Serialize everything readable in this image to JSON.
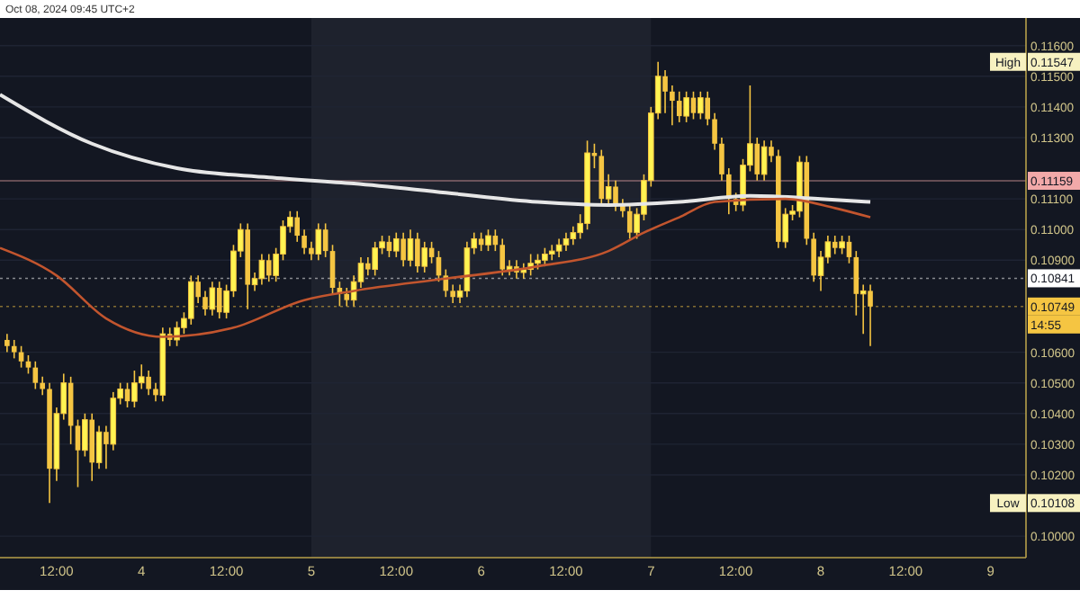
{
  "chart_data": {
    "type": "candlestick",
    "annotations": [
      "Oct 08, 2024 09:45 UTC+2",
      "High",
      "0.11547",
      "Low",
      "0.10108",
      "14:55"
    ],
    "color": "#f5c542",
    "x": [
      "2024-10-03T05:00",
      "2024-10-03T06:00",
      "2024-10-03T07:00",
      "2024-10-03T08:00",
      "2024-10-03T09:00",
      "2024-10-03T10:00",
      "2024-10-03T11:00",
      "2024-10-03T12:00",
      "2024-10-03T13:00",
      "2024-10-03T14:00",
      "2024-10-03T15:00",
      "2024-10-03T16:00",
      "2024-10-03T17:00",
      "2024-10-03T18:00",
      "2024-10-03T19:00",
      "2024-10-03T20:00",
      "2024-10-03T21:00",
      "2024-10-03T22:00",
      "2024-10-03T23:00",
      "2024-10-04T00:00",
      "2024-10-04T01:00",
      "2024-10-04T02:00",
      "2024-10-04T03:00",
      "2024-10-04T04:00",
      "2024-10-04T05:00",
      "2024-10-04T06:00",
      "2024-10-04T07:00",
      "2024-10-04T08:00",
      "2024-10-04T09:00",
      "2024-10-04T10:00",
      "2024-10-04T11:00",
      "2024-10-04T12:00",
      "2024-10-04T13:00",
      "2024-10-04T14:00",
      "2024-10-04T15:00",
      "2024-10-04T16:00",
      "2024-10-04T17:00",
      "2024-10-04T18:00",
      "2024-10-04T19:00",
      "2024-10-04T20:00",
      "2024-10-04T21:00",
      "2024-10-04T22:00",
      "2024-10-04T23:00",
      "2024-10-05T00:00",
      "2024-10-05T01:00",
      "2024-10-05T02:00",
      "2024-10-05T03:00",
      "2024-10-05T04:00",
      "2024-10-05T05:00",
      "2024-10-05T06:00",
      "2024-10-05T07:00",
      "2024-10-05T08:00",
      "2024-10-05T09:00",
      "2024-10-05T10:00",
      "2024-10-05T11:00",
      "2024-10-05T12:00",
      "2024-10-05T13:00",
      "2024-10-05T14:00",
      "2024-10-05T15:00",
      "2024-10-05T16:00",
      "2024-10-05T17:00",
      "2024-10-05T18:00",
      "2024-10-05T19:00",
      "2024-10-05T20:00",
      "2024-10-05T21:00",
      "2024-10-05T22:00",
      "2024-10-05T23:00",
      "2024-10-06T00:00",
      "2024-10-06T01:00",
      "2024-10-06T02:00",
      "2024-10-06T03:00",
      "2024-10-06T04:00",
      "2024-10-06T05:00",
      "2024-10-06T06:00",
      "2024-10-06T07:00",
      "2024-10-06T08:00",
      "2024-10-06T09:00",
      "2024-10-06T10:00",
      "2024-10-06T11:00",
      "2024-10-06T12:00",
      "2024-10-06T13:00",
      "2024-10-06T14:00",
      "2024-10-06T15:00",
      "2024-10-06T16:00",
      "2024-10-06T17:00",
      "2024-10-06T18:00",
      "2024-10-06T19:00",
      "2024-10-06T20:00",
      "2024-10-06T21:00",
      "2024-10-06T22:00",
      "2024-10-06T23:00",
      "2024-10-07T00:00",
      "2024-10-07T01:00",
      "2024-10-07T02:00",
      "2024-10-07T03:00",
      "2024-10-07T04:00",
      "2024-10-07T05:00",
      "2024-10-07T06:00",
      "2024-10-07T07:00",
      "2024-10-07T08:00",
      "2024-10-07T09:00",
      "2024-10-07T10:00",
      "2024-10-07T11:00",
      "2024-10-07T12:00",
      "2024-10-07T13:00",
      "2024-10-07T14:00",
      "2024-10-07T15:00",
      "2024-10-07T16:00",
      "2024-10-07T17:00",
      "2024-10-07T18:00",
      "2024-10-07T19:00",
      "2024-10-07T20:00",
      "2024-10-07T21:00",
      "2024-10-07T22:00",
      "2024-10-07T23:00",
      "2024-10-08T00:00",
      "2024-10-08T01:00",
      "2024-10-08T02:00",
      "2024-10-08T03:00",
      "2024-10-08T04:00",
      "2024-10-08T05:00",
      "2024-10-08T06:00",
      "2024-10-08T07:00"
    ],
    "ohlc": [
      [
        0.1064,
        0.1066,
        0.106,
        0.1062
      ],
      [
        0.1062,
        0.1064,
        0.1058,
        0.106
      ],
      [
        0.106,
        0.1062,
        0.1055,
        0.1057
      ],
      [
        0.1057,
        0.1059,
        0.1053,
        0.1055
      ],
      [
        0.1055,
        0.1057,
        0.1048,
        0.105
      ],
      [
        0.105,
        0.1052,
        0.1046,
        0.1048
      ],
      [
        0.1048,
        0.105,
        0.10108,
        0.1022
      ],
      [
        0.1022,
        0.1042,
        0.1018,
        0.104
      ],
      [
        0.104,
        0.1053,
        0.1038,
        0.105
      ],
      [
        0.105,
        0.1052,
        0.103,
        0.1036
      ],
      [
        0.1036,
        0.1038,
        0.1016,
        0.1028
      ],
      [
        0.1028,
        0.104,
        0.1026,
        0.1038
      ],
      [
        0.1038,
        0.104,
        0.1018,
        0.1024
      ],
      [
        0.1024,
        0.1036,
        0.1022,
        0.1034
      ],
      [
        0.1034,
        0.1036,
        0.1022,
        0.103
      ],
      [
        0.103,
        0.1047,
        0.1028,
        0.1045
      ],
      [
        0.1045,
        0.105,
        0.1043,
        0.1048
      ],
      [
        0.1048,
        0.105,
        0.1042,
        0.1044
      ],
      [
        0.1044,
        0.1054,
        0.1042,
        0.105
      ],
      [
        0.105,
        0.1056,
        0.1048,
        0.1052
      ],
      [
        0.1052,
        0.1054,
        0.1046,
        0.1048
      ],
      [
        0.1048,
        0.105,
        0.1044,
        0.1046
      ],
      [
        0.1046,
        0.1068,
        0.1044,
        0.1066
      ],
      [
        0.1066,
        0.1068,
        0.1062,
        0.1064
      ],
      [
        0.1064,
        0.107,
        0.1062,
        0.1068
      ],
      [
        0.1068,
        0.1073,
        0.1066,
        0.1071
      ],
      [
        0.1071,
        0.1085,
        0.1069,
        0.1083
      ],
      [
        0.1083,
        0.1085,
        0.1076,
        0.1078
      ],
      [
        0.1078,
        0.108,
        0.1072,
        0.1074
      ],
      [
        0.1074,
        0.1083,
        0.1072,
        0.1081
      ],
      [
        0.1081,
        0.1083,
        0.1071,
        0.1073
      ],
      [
        0.1073,
        0.1082,
        0.1071,
        0.108
      ],
      [
        0.108,
        0.1095,
        0.1078,
        0.1093
      ],
      [
        0.1093,
        0.1102,
        0.1091,
        0.11
      ],
      [
        0.11,
        0.1102,
        0.1074,
        0.1082
      ],
      [
        0.1082,
        0.1086,
        0.108,
        0.1084
      ],
      [
        0.1084,
        0.1092,
        0.1082,
        0.109
      ],
      [
        0.109,
        0.1092,
        0.1083,
        0.1085
      ],
      [
        0.1085,
        0.1094,
        0.1083,
        0.1092
      ],
      [
        0.1092,
        0.1103,
        0.109,
        0.1101
      ],
      [
        0.1101,
        0.1106,
        0.1099,
        0.1104
      ],
      [
        0.1104,
        0.1106,
        0.1096,
        0.1098
      ],
      [
        0.1098,
        0.11,
        0.1092,
        0.1094
      ],
      [
        0.1094,
        0.1096,
        0.109,
        0.1092
      ],
      [
        0.1092,
        0.1102,
        0.109,
        0.11
      ],
      [
        0.11,
        0.1102,
        0.1091,
        0.1093
      ],
      [
        0.1093,
        0.1095,
        0.1079,
        0.1081
      ],
      [
        0.1081,
        0.1083,
        0.1075,
        0.1079
      ],
      [
        0.1079,
        0.1081,
        0.1075,
        0.1077
      ],
      [
        0.1077,
        0.1085,
        0.1075,
        0.1083
      ],
      [
        0.1083,
        0.1091,
        0.1081,
        0.1089
      ],
      [
        0.1089,
        0.1091,
        0.1085,
        0.1087
      ],
      [
        0.1087,
        0.1096,
        0.1085,
        0.1094
      ],
      [
        0.1094,
        0.1098,
        0.1092,
        0.1096
      ],
      [
        0.1096,
        0.1098,
        0.1091,
        0.1093
      ],
      [
        0.1093,
        0.1099,
        0.1091,
        0.1097
      ],
      [
        0.1097,
        0.1099,
        0.1088,
        0.109
      ],
      [
        0.109,
        0.11,
        0.1088,
        0.1097
      ],
      [
        0.1097,
        0.1099,
        0.1086,
        0.1088
      ],
      [
        0.1088,
        0.1096,
        0.1086,
        0.1094
      ],
      [
        0.1094,
        0.1096,
        0.1089,
        0.1091
      ],
      [
        0.1091,
        0.1093,
        0.1083,
        0.1085
      ],
      [
        0.1085,
        0.1087,
        0.1078,
        0.108
      ],
      [
        0.108,
        0.1082,
        0.1076,
        0.1078
      ],
      [
        0.1078,
        0.1082,
        0.1076,
        0.108
      ],
      [
        0.108,
        0.1096,
        0.1078,
        0.1094
      ],
      [
        0.1094,
        0.1099,
        0.1092,
        0.1097
      ],
      [
        0.1097,
        0.1099,
        0.1093,
        0.1095
      ],
      [
        0.1095,
        0.11,
        0.1093,
        0.1098
      ],
      [
        0.1098,
        0.11,
        0.1093,
        0.1095
      ],
      [
        0.1095,
        0.1097,
        0.1085,
        0.1087
      ],
      [
        0.1087,
        0.109,
        0.1085,
        0.1088
      ],
      [
        0.1088,
        0.109,
        0.1084,
        0.1086
      ],
      [
        0.1086,
        0.1089,
        0.1084,
        0.1087
      ],
      [
        0.1087,
        0.1092,
        0.1085,
        0.1089
      ],
      [
        0.1089,
        0.1092,
        0.1087,
        0.109
      ],
      [
        0.109,
        0.1094,
        0.1088,
        0.1092
      ],
      [
        0.1092,
        0.1095,
        0.109,
        0.1093
      ],
      [
        0.1093,
        0.1097,
        0.1091,
        0.1095
      ],
      [
        0.1095,
        0.1099,
        0.1093,
        0.1097
      ],
      [
        0.1097,
        0.1101,
        0.1095,
        0.1099
      ],
      [
        0.1099,
        0.1105,
        0.1097,
        0.1102
      ],
      [
        0.1102,
        0.1129,
        0.11,
        0.1125
      ],
      [
        0.1125,
        0.1128,
        0.112,
        0.1124
      ],
      [
        0.1124,
        0.1126,
        0.1108,
        0.111
      ],
      [
        0.111,
        0.1118,
        0.1108,
        0.1114
      ],
      [
        0.1114,
        0.1116,
        0.1106,
        0.1108
      ],
      [
        0.1108,
        0.111,
        0.1104,
        0.1106
      ],
      [
        0.1106,
        0.1108,
        0.1097,
        0.1099
      ],
      [
        0.1099,
        0.1107,
        0.1097,
        0.1105
      ],
      [
        0.1105,
        0.1118,
        0.1103,
        0.1116
      ],
      [
        0.1116,
        0.114,
        0.1114,
        0.1138
      ],
      [
        0.1138,
        0.11547,
        0.1136,
        0.115
      ],
      [
        0.115,
        0.1152,
        0.1138,
        0.1145
      ],
      [
        0.1145,
        0.1147,
        0.1134,
        0.1142
      ],
      [
        0.1142,
        0.1145,
        0.1135,
        0.1137
      ],
      [
        0.1137,
        0.1145,
        0.1135,
        0.1143
      ],
      [
        0.1143,
        0.1145,
        0.1136,
        0.1138
      ],
      [
        0.1138,
        0.1145,
        0.1136,
        0.1143
      ],
      [
        0.1143,
        0.1145,
        0.1134,
        0.1136
      ],
      [
        0.1136,
        0.1138,
        0.1126,
        0.1128
      ],
      [
        0.1128,
        0.113,
        0.1116,
        0.1118
      ],
      [
        0.1118,
        0.112,
        0.1105,
        0.111
      ],
      [
        0.111,
        0.1112,
        0.1106,
        0.1108
      ],
      [
        0.1108,
        0.1123,
        0.1106,
        0.1121
      ],
      [
        0.1121,
        0.1147,
        0.1119,
        0.1128
      ],
      [
        0.1128,
        0.113,
        0.1116,
        0.1118
      ],
      [
        0.1118,
        0.1129,
        0.1116,
        0.1127
      ],
      [
        0.1127,
        0.1129,
        0.1122,
        0.1124
      ],
      [
        0.1124,
        0.1126,
        0.1094,
        0.1096
      ],
      [
        0.1096,
        0.1107,
        0.1094,
        0.1105
      ],
      [
        0.1105,
        0.1108,
        0.1103,
        0.1106
      ],
      [
        0.1106,
        0.1124,
        0.1104,
        0.1122
      ],
      [
        0.1122,
        0.1124,
        0.1095,
        0.1097
      ],
      [
        0.1097,
        0.1099,
        0.1083,
        0.1085
      ],
      [
        0.1085,
        0.1093,
        0.108,
        0.1091
      ],
      [
        0.1091,
        0.1098,
        0.1089,
        0.1096
      ],
      [
        0.1096,
        0.1098,
        0.1092,
        0.1094
      ],
      [
        0.1094,
        0.1098,
        0.1092,
        0.1096
      ],
      [
        0.1096,
        0.1098,
        0.1089,
        0.1091
      ],
      [
        0.1091,
        0.1093,
        0.1072,
        0.1079
      ],
      [
        0.1079,
        0.1082,
        0.1066,
        0.108
      ],
      [
        0.108,
        0.1082,
        0.1062,
        0.10749
      ]
    ],
    "series": [
      {
        "type": "line",
        "color": "#e6e6e6",
        "x": [
          "2024-10-03T04:00",
          "2024-10-03T17:00",
          "2024-10-04T05:00",
          "2024-10-04T18:00",
          "2024-10-05T06:00",
          "2024-10-05T19:00",
          "2024-10-06T08:00",
          "2024-10-06T18:00",
          "2024-10-07T04:00",
          "2024-10-07T14:00",
          "2024-10-08T00:00",
          "2024-10-08T07:00"
        ],
        "values": [
          0.1144,
          0.1128,
          0.112,
          0.1117,
          0.1115,
          0.1112,
          0.1109,
          0.1108,
          0.1109,
          0.1111,
          0.111,
          0.1109
        ]
      },
      {
        "type": "line",
        "color": "#c2552e",
        "x": [
          "2024-10-03T04:00",
          "2024-10-03T12:00",
          "2024-10-03T19:00",
          "2024-10-04T03:00",
          "2024-10-04T13:00",
          "2024-10-04T23:00",
          "2024-10-05T06:00",
          "2024-10-05T19:00",
          "2024-10-06T08:00",
          "2024-10-06T18:00",
          "2024-10-06T23:00",
          "2024-10-07T04:00",
          "2024-10-07T09:00",
          "2024-10-07T19:00",
          "2024-10-08T02:00",
          "2024-10-08T07:00"
        ],
        "values": [
          0.1094,
          0.1085,
          0.1071,
          0.1065,
          0.1068,
          0.1077,
          0.108,
          0.1084,
          0.1088,
          0.1093,
          0.1099,
          0.1104,
          0.1109,
          0.111,
          0.1107,
          0.1104
        ]
      }
    ],
    "xlim": [
      "2024-10-03T04:00",
      "2024-10-09T05:00"
    ],
    "xticks": [
      {
        "value": "2024-10-03T12:00",
        "label": "12:00"
      },
      {
        "value": "2024-10-04",
        "label": "4"
      },
      {
        "value": "2024-10-04T12:00",
        "label": "12:00"
      },
      {
        "value": "2024-10-05",
        "label": "5"
      },
      {
        "value": "2024-10-05T12:00",
        "label": "12:00"
      },
      {
        "value": "2024-10-06",
        "label": "6"
      },
      {
        "value": "2024-10-06T12:00",
        "label": "12:00"
      },
      {
        "value": "2024-10-07",
        "label": "7"
      },
      {
        "value": "2024-10-07T12:00",
        "label": "12:00"
      },
      {
        "value": "2024-10-08",
        "label": "8"
      },
      {
        "value": "2024-10-08T12:00",
        "label": "12:00"
      },
      {
        "value": "2024-10-09",
        "label": "9"
      }
    ],
    "ylim": [
      0.0993,
      0.1169
    ],
    "yticks": [
      {
        "value": 0.1,
        "label": "0.10000"
      },
      {
        "value": 0.102,
        "label": "0.10200"
      },
      {
        "value": 0.103,
        "label": "0.10300"
      },
      {
        "value": 0.104,
        "label": "0.10400"
      },
      {
        "value": 0.105,
        "label": "0.10500"
      },
      {
        "value": 0.106,
        "label": "0.10600"
      },
      {
        "value": 0.109,
        "label": "0.10900"
      },
      {
        "value": 0.11,
        "label": "0.11000"
      },
      {
        "value": 0.111,
        "label": "0.11100"
      },
      {
        "value": 0.113,
        "label": "0.11300"
      },
      {
        "value": 0.114,
        "label": "0.11400"
      },
      {
        "value": 0.115,
        "label": "0.11500"
      },
      {
        "value": 0.116,
        "label": "0.11600"
      }
    ],
    "grid": "y",
    "ref_lines": [
      {
        "axis": "y",
        "value": 0.10749,
        "label": "0.10749",
        "color": "#f5c542",
        "line_style": "dotted"
      },
      {
        "axis": "y",
        "value": 0.11159,
        "label": "0.11159",
        "color": "#f2a9a9",
        "line_style": "solid"
      },
      {
        "axis": "y",
        "value": 0.10841,
        "label": "0.10841",
        "color": "#ffffff",
        "line_style": "dotted"
      }
    ],
    "bands": [
      {
        "axis": "x",
        "from": "2024-10-05T00:00",
        "to": "2024-10-07T00:00",
        "color": "#1e222d"
      }
    ]
  }
}
